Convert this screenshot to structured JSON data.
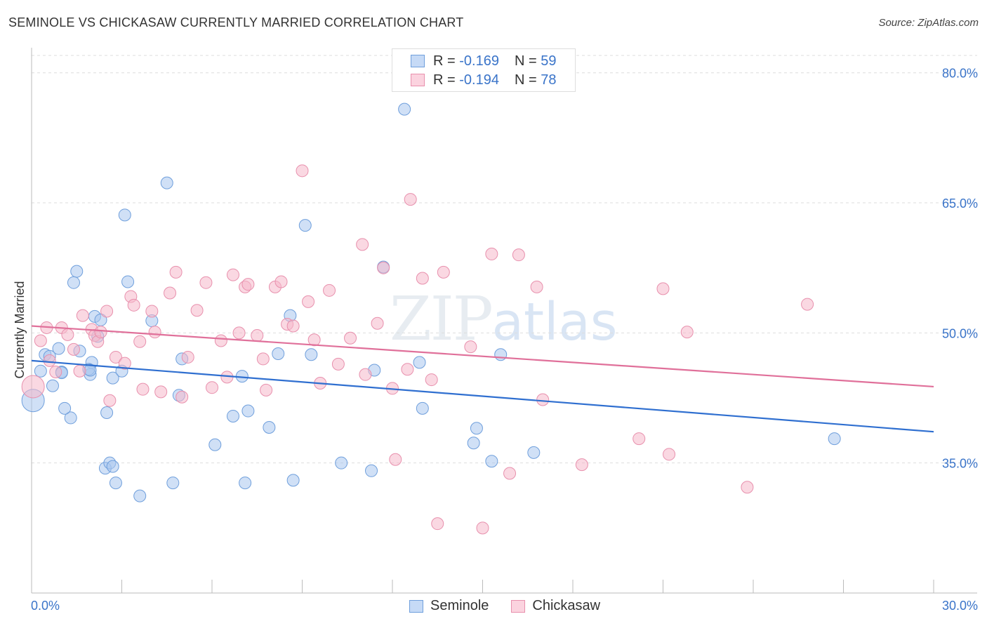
{
  "title": "SEMINOLE VS CHICKASAW CURRENTLY MARRIED CORRELATION CHART",
  "source": "Source: ZipAtlas.com",
  "watermark": {
    "a": "ZIP",
    "b": "atlas"
  },
  "legend": {
    "r_label": "R =",
    "n_label": "N =",
    "rows": [
      {
        "name": "Seminole",
        "r": "-0.169",
        "n": "59"
      },
      {
        "name": "Chickasaw",
        "r": "-0.194",
        "n": "78"
      }
    ]
  },
  "colors": {
    "seminole_fill": "#a9c6ef",
    "seminole_stroke": "#6f9fdc",
    "seminole_line": "#2f6fd0",
    "chickasaw_fill": "#f6b8cb",
    "chickasaw_stroke": "#e890ad",
    "chickasaw_line": "#e0709a",
    "tick_text": "#3a74c9"
  },
  "chart_data": {
    "type": "scatter",
    "title": "SEMINOLE VS CHICKASAW CURRENTLY MARRIED CORRELATION CHART",
    "xlabel": "",
    "ylabel": "Currently Married",
    "xlim": [
      0,
      30
    ],
    "ylim": [
      20,
      82
    ],
    "x_tick_labels": [
      "0.0%",
      "30.0%"
    ],
    "y_ticks": [
      35,
      50,
      65,
      80
    ],
    "y_tick_labels": [
      "35.0%",
      "50.0%",
      "65.0%",
      "80.0%"
    ],
    "grid": "horizontal dashed",
    "legend_placement": "top-center",
    "series": [
      {
        "name": "Seminole",
        "trend": {
          "x": [
            0,
            30
          ],
          "y": [
            46.8,
            38.6
          ]
        },
        "points": [
          [
            0.05,
            42.2
          ],
          [
            0.3,
            45.6
          ],
          [
            0.45,
            47.5
          ],
          [
            0.6,
            47.3
          ],
          [
            0.7,
            43.9
          ],
          [
            0.9,
            48.2
          ],
          [
            1.0,
            45.5
          ],
          [
            1.3,
            40.2
          ],
          [
            1.1,
            41.3
          ],
          [
            1.5,
            57.1
          ],
          [
            1.6,
            47.9
          ],
          [
            1.4,
            55.8
          ],
          [
            1.95,
            45.2
          ],
          [
            2.0,
            46.6
          ],
          [
            1.9,
            45.8
          ],
          [
            1.95,
            45.7
          ],
          [
            2.1,
            51.9
          ],
          [
            2.2,
            49.6
          ],
          [
            2.3,
            51.5
          ],
          [
            2.45,
            34.4
          ],
          [
            2.5,
            40.8
          ],
          [
            2.6,
            35.0
          ],
          [
            2.7,
            44.8
          ],
          [
            2.8,
            32.7
          ],
          [
            3.0,
            45.6
          ],
          [
            3.1,
            63.6
          ],
          [
            3.2,
            55.9
          ],
          [
            3.6,
            31.2
          ],
          [
            4.0,
            51.4
          ],
          [
            4.5,
            67.3
          ],
          [
            4.7,
            32.7
          ],
          [
            4.9,
            42.8
          ],
          [
            5.0,
            47.0
          ],
          [
            6.1,
            37.1
          ],
          [
            6.7,
            40.4
          ],
          [
            7.0,
            45.0
          ],
          [
            7.1,
            32.7
          ],
          [
            7.2,
            41.0
          ],
          [
            7.9,
            39.1
          ],
          [
            8.2,
            47.6
          ],
          [
            8.7,
            33.0
          ],
          [
            8.6,
            52.0
          ],
          [
            9.1,
            62.4
          ],
          [
            9.3,
            47.5
          ],
          [
            10.3,
            35.0
          ],
          [
            11.3,
            34.1
          ],
          [
            11.4,
            45.7
          ],
          [
            11.7,
            57.6
          ],
          [
            12.4,
            75.8
          ],
          [
            12.9,
            46.6
          ],
          [
            13.0,
            41.3
          ],
          [
            14.7,
            37.3
          ],
          [
            14.8,
            39.0
          ],
          [
            15.3,
            35.2
          ],
          [
            15.6,
            47.5
          ],
          [
            16.7,
            36.2
          ],
          [
            26.7,
            37.8
          ],
          [
            2.7,
            34.6
          ],
          [
            1.0,
            45.4
          ]
        ]
      },
      {
        "name": "Chickasaw",
        "trend": {
          "x": [
            0,
            30
          ],
          "y": [
            50.8,
            43.8
          ]
        },
        "points": [
          [
            0.05,
            43.8
          ],
          [
            0.3,
            49.1
          ],
          [
            0.5,
            50.6
          ],
          [
            0.6,
            46.8
          ],
          [
            0.8,
            45.5
          ],
          [
            1.0,
            50.6
          ],
          [
            1.2,
            49.8
          ],
          [
            1.4,
            48.1
          ],
          [
            1.6,
            45.6
          ],
          [
            1.7,
            52.0
          ],
          [
            2.0,
            50.4
          ],
          [
            2.1,
            49.7
          ],
          [
            2.2,
            49.0
          ],
          [
            2.3,
            50.1
          ],
          [
            2.5,
            52.5
          ],
          [
            2.6,
            42.2
          ],
          [
            2.8,
            47.2
          ],
          [
            3.1,
            46.5
          ],
          [
            3.3,
            54.2
          ],
          [
            3.4,
            53.2
          ],
          [
            3.6,
            49.0
          ],
          [
            3.7,
            43.5
          ],
          [
            4.0,
            52.5
          ],
          [
            4.1,
            50.1
          ],
          [
            4.3,
            43.2
          ],
          [
            4.6,
            54.6
          ],
          [
            4.8,
            57.0
          ],
          [
            5.0,
            42.6
          ],
          [
            5.2,
            47.2
          ],
          [
            5.5,
            52.6
          ],
          [
            5.8,
            55.8
          ],
          [
            6.0,
            43.7
          ],
          [
            6.3,
            49.1
          ],
          [
            6.5,
            44.9
          ],
          [
            6.7,
            56.7
          ],
          [
            6.9,
            50.0
          ],
          [
            7.1,
            55.3
          ],
          [
            7.2,
            55.6
          ],
          [
            7.5,
            49.7
          ],
          [
            7.7,
            47.0
          ],
          [
            7.8,
            43.4
          ],
          [
            8.1,
            55.3
          ],
          [
            8.3,
            55.9
          ],
          [
            8.5,
            51.0
          ],
          [
            8.7,
            50.8
          ],
          [
            9.0,
            68.7
          ],
          [
            9.2,
            53.6
          ],
          [
            9.4,
            49.2
          ],
          [
            9.6,
            44.2
          ],
          [
            9.9,
            54.9
          ],
          [
            10.2,
            46.4
          ],
          [
            10.6,
            49.4
          ],
          [
            11.0,
            60.2
          ],
          [
            11.1,
            45.2
          ],
          [
            11.5,
            51.1
          ],
          [
            11.7,
            57.5
          ],
          [
            12.0,
            43.6
          ],
          [
            12.1,
            35.4
          ],
          [
            12.5,
            45.8
          ],
          [
            12.6,
            65.4
          ],
          [
            13.0,
            56.3
          ],
          [
            13.3,
            44.6
          ],
          [
            13.5,
            28.0
          ],
          [
            13.7,
            57.0
          ],
          [
            14.6,
            48.4
          ],
          [
            15.0,
            27.5
          ],
          [
            15.3,
            59.1
          ],
          [
            15.9,
            33.8
          ],
          [
            16.2,
            59.0
          ],
          [
            16.8,
            55.3
          ],
          [
            17.0,
            42.3
          ],
          [
            18.3,
            34.8
          ],
          [
            20.2,
            37.8
          ],
          [
            21.0,
            55.1
          ],
          [
            21.2,
            36.0
          ],
          [
            21.8,
            50.1
          ],
          [
            23.8,
            32.2
          ],
          [
            25.8,
            53.3
          ]
        ]
      }
    ]
  },
  "bottom_legend": [
    "Seminole",
    "Chickasaw"
  ]
}
